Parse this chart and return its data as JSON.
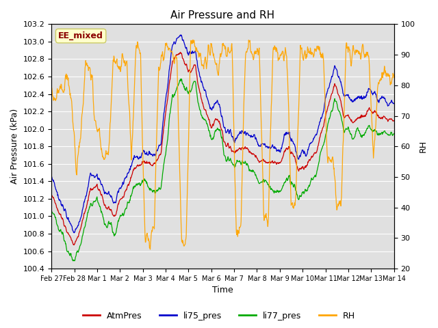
{
  "title": "Air Pressure and RH",
  "xlabel": "Time",
  "ylabel_left": "Air Pressure (kPa)",
  "ylabel_right": "RH",
  "ylim_left": [
    100.4,
    103.2
  ],
  "ylim_right": [
    20,
    100
  ],
  "yticks_left": [
    100.4,
    100.6,
    100.8,
    101.0,
    101.2,
    101.4,
    101.6,
    101.8,
    102.0,
    102.2,
    102.4,
    102.6,
    102.8,
    103.0,
    103.2
  ],
  "yticks_right": [
    20,
    30,
    40,
    50,
    60,
    70,
    80,
    90,
    100
  ],
  "xtick_labels": [
    "Feb 27",
    "Feb 28",
    "Mar 1",
    "Mar 2",
    "Mar 3",
    "Mar 4",
    "Mar 5",
    "Mar 6",
    "Mar 7",
    "Mar 8",
    "Mar 9",
    "Mar 10",
    "Mar 11",
    "Mar 12",
    "Mar 13",
    "Mar 14"
  ],
  "annotation_text": "EE_mixed",
  "annotation_color": "#8B0000",
  "annotation_bg": "#FFFFCC",
  "legend_labels": [
    "AtmPres",
    "li75_pres",
    "li77_pres",
    "RH"
  ],
  "line_colors": [
    "#CC0000",
    "#0000CC",
    "#00AA00",
    "#FFA500"
  ],
  "bg_color": "#E0E0E0",
  "grid_color": "#FFFFFF",
  "fig_bg": "#FFFFFF"
}
